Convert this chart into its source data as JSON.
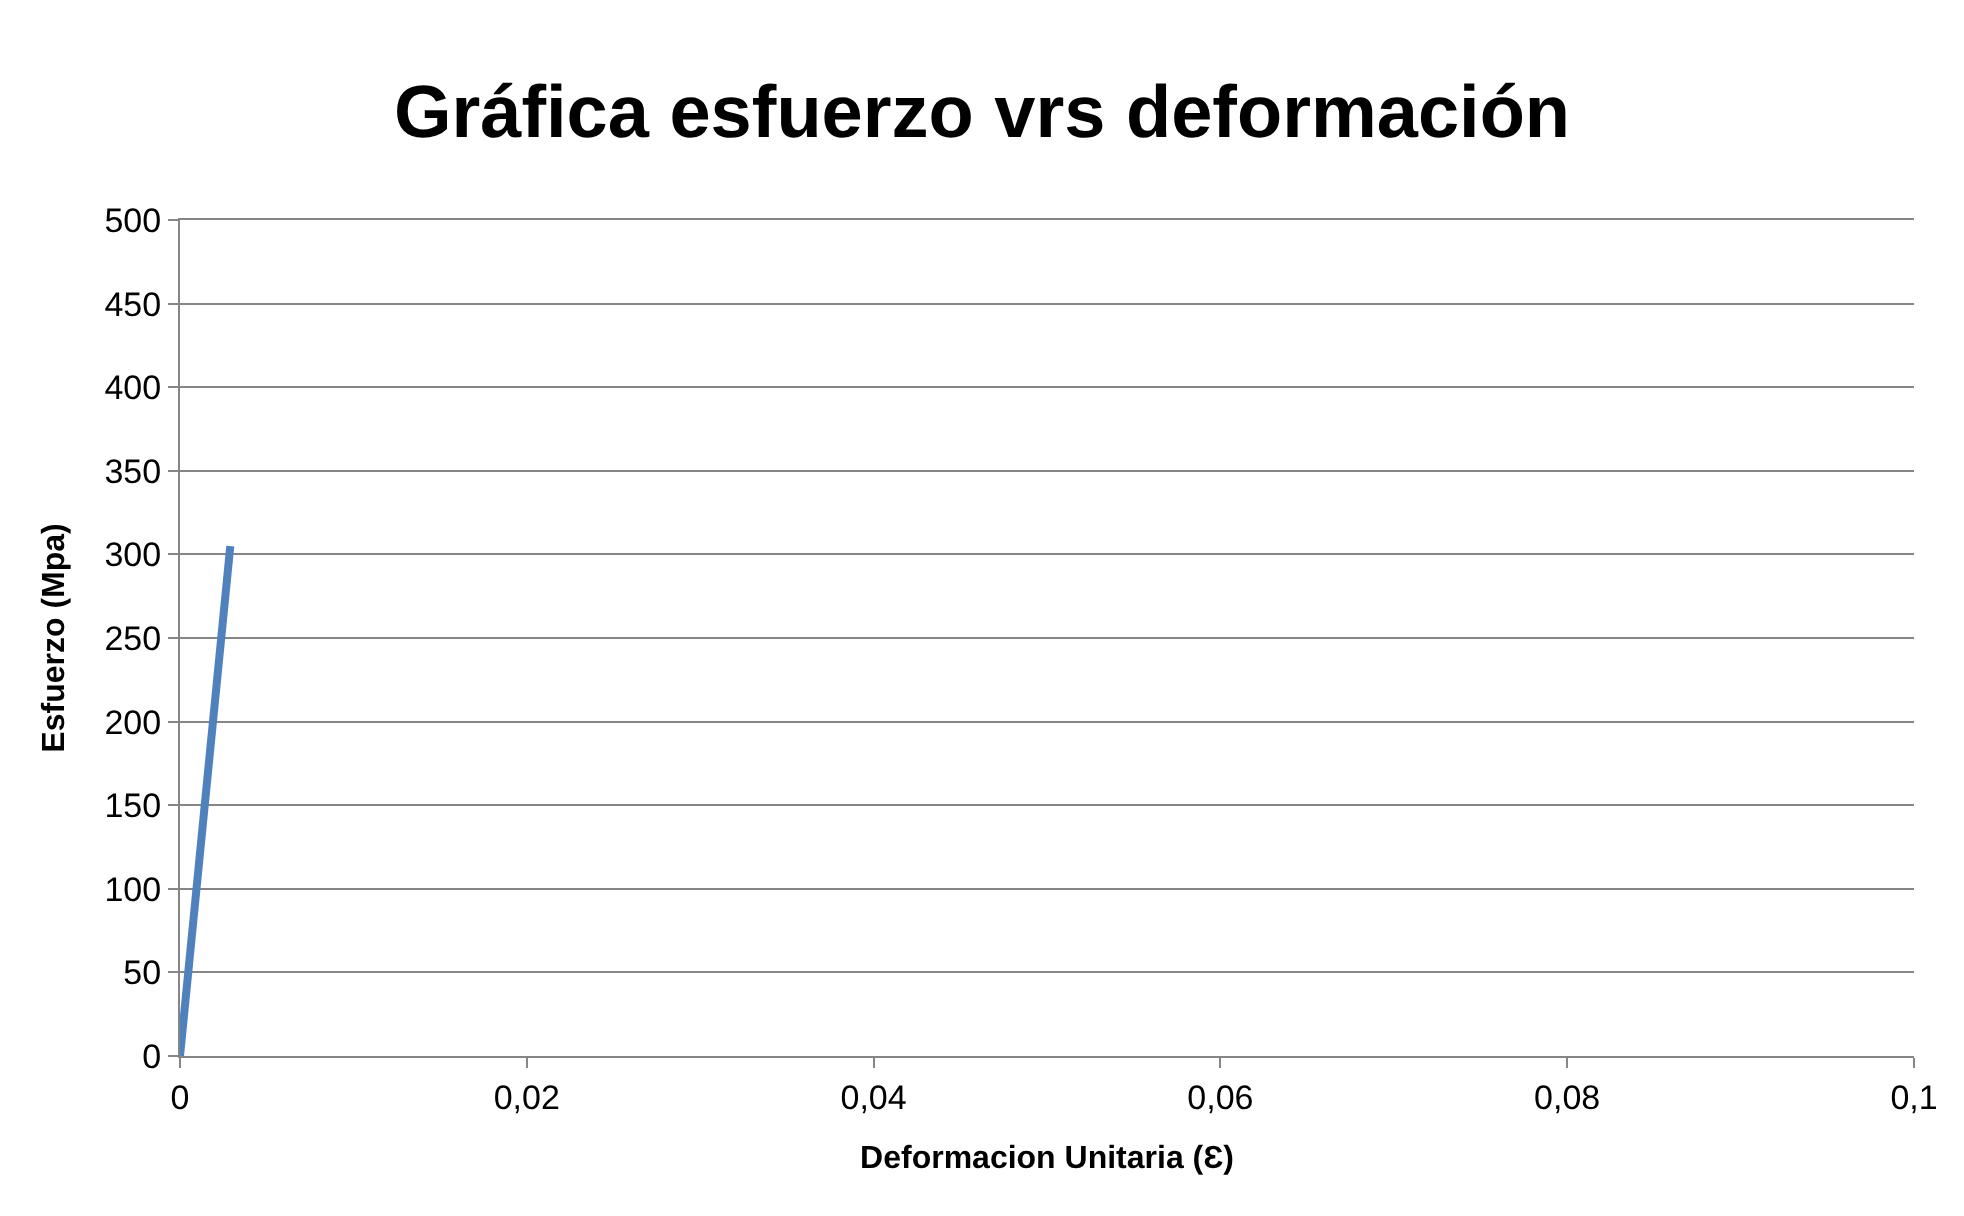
{
  "chart_data": {
    "type": "line",
    "title": "Gráfica esfuerzo vrs deformación",
    "xlabel": "Deformacion Unitaria (Ɛ)",
    "ylabel": "Esfuerzo (Mpa)",
    "x": [
      0,
      0.0029
    ],
    "series": [
      {
        "color": "#4f81bd",
        "values": [
          0,
          305
        ]
      }
    ],
    "xlim": [
      0,
      0.1
    ],
    "xticks": [
      {
        "value": 0,
        "label": "0"
      },
      {
        "value": 0.02,
        "label": "0,02"
      },
      {
        "value": 0.04,
        "label": "0,04"
      },
      {
        "value": 0.06,
        "label": "0,06"
      },
      {
        "value": 0.08,
        "label": "0,08"
      },
      {
        "value": 0.1,
        "label": "0,1"
      }
    ],
    "ylim": [
      0,
      500
    ],
    "yticks": [
      0,
      50,
      100,
      150,
      200,
      250,
      300,
      350,
      400,
      450,
      500
    ],
    "grid": "y",
    "marker": "none",
    "line_style": "solid"
  }
}
